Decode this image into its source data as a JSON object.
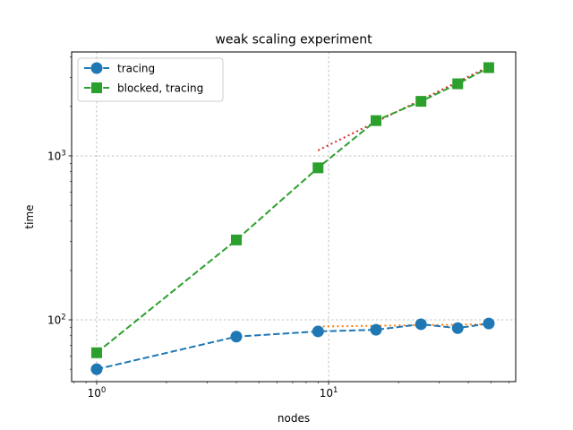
{
  "chart_data": {
    "type": "line",
    "title": "weak scaling experiment",
    "xlabel": "nodes",
    "ylabel": "time",
    "xscale": "log",
    "yscale": "log",
    "xlim": [
      0.78,
      64
    ],
    "ylim": [
      42,
      4300
    ],
    "grid": true,
    "legend_position": "top-left",
    "x_ticks": [
      {
        "value": 1,
        "base": "10",
        "exp": "0"
      },
      {
        "value": 10,
        "base": "10",
        "exp": "1"
      }
    ],
    "y_ticks": [
      {
        "value": 100,
        "base": "10",
        "exp": "2"
      },
      {
        "value": 1000,
        "base": "10",
        "exp": "3"
      }
    ],
    "series": [
      {
        "name": "tracing",
        "color": "#1f77b4",
        "marker": "circle",
        "linestyle": "dashed",
        "x": [
          1,
          4,
          9,
          16,
          25,
          36,
          49
        ],
        "y": [
          50,
          79,
          85,
          87,
          94,
          89,
          95
        ]
      },
      {
        "name": "blocked, tracing",
        "color": "#2ca02c",
        "marker": "square",
        "linestyle": "dashed",
        "x": [
          1,
          4,
          9,
          16,
          25,
          36,
          49
        ],
        "y": [
          63,
          307,
          845,
          1640,
          2150,
          2750,
          3450
        ]
      }
    ],
    "fit_lines": [
      {
        "color": "#ff7f0e",
        "linestyle": "dotted",
        "x": [
          9,
          49
        ],
        "y": [
          91,
          94
        ]
      },
      {
        "color": "#d62728",
        "linestyle": "dotted",
        "x": [
          9,
          49
        ],
        "y": [
          1080,
          3500
        ]
      }
    ]
  }
}
